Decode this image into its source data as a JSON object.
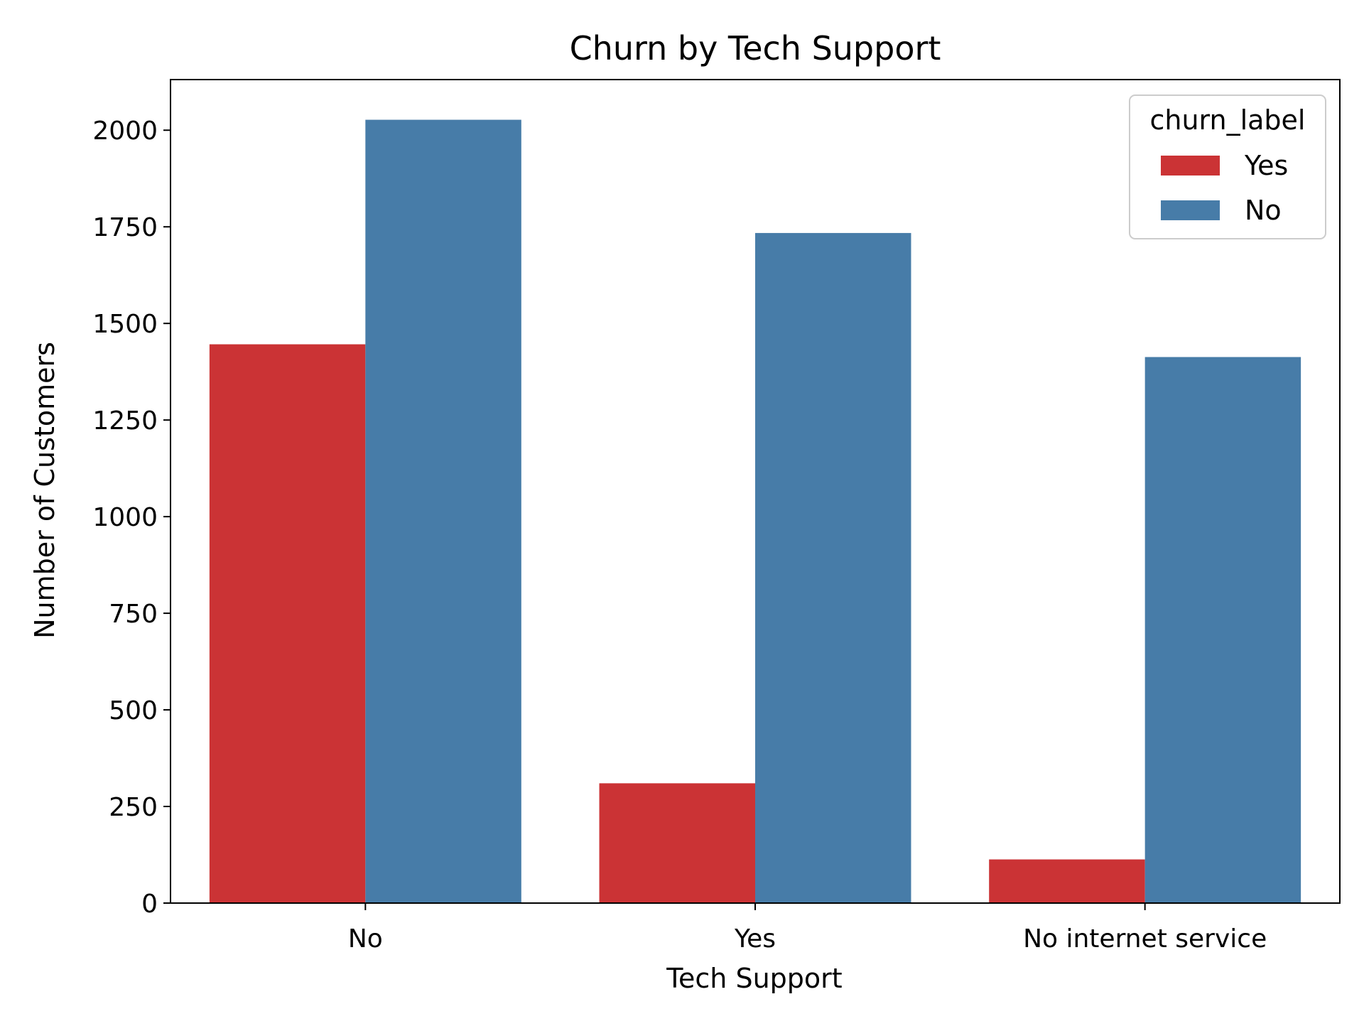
{
  "chart_data": {
    "type": "bar",
    "title": "Churn by Tech Support",
    "xlabel": "Tech Support",
    "ylabel": "Number of Customers",
    "categories": [
      "No",
      "Yes",
      "No internet service"
    ],
    "series": [
      {
        "name": "Yes",
        "values": [
          1446,
          310,
          113
        ],
        "color": "#cb3335"
      },
      {
        "name": "No",
        "values": [
          2027,
          1734,
          1413
        ],
        "color": "#477ca8"
      }
    ],
    "ylim": [
      0,
      2131
    ],
    "yticks": [
      0,
      250,
      500,
      750,
      1000,
      1250,
      1500,
      1750,
      2000
    ],
    "grid": false,
    "legend": {
      "title": "churn_label",
      "placement": "top-right"
    }
  }
}
